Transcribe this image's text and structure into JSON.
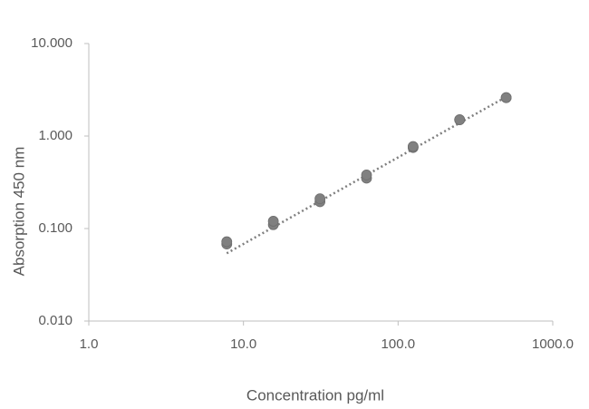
{
  "chart_data": {
    "type": "scatter",
    "xlabel": "Concentration pg/ml",
    "ylabel": "Absorption 450 nm",
    "log_x": true,
    "log_y": true,
    "grid": false,
    "xlim": [
      1,
      1000
    ],
    "ylim": [
      0.01,
      10
    ],
    "xticks": [
      {
        "value": 1,
        "label": "1.0"
      },
      {
        "value": 10,
        "label": "10.0"
      },
      {
        "value": 100,
        "label": "100.0"
      },
      {
        "value": 1000,
        "label": "1000.0"
      }
    ],
    "yticks": [
      {
        "value": 0.01,
        "label": "0.010"
      },
      {
        "value": 0.1,
        "label": "0.100"
      },
      {
        "value": 1,
        "label": "1.000"
      },
      {
        "value": 10,
        "label": "10.000"
      }
    ],
    "series": [
      {
        "color": "#808080",
        "x": [
          7.8,
          7.8,
          15.6,
          15.6,
          31.25,
          31.25,
          62.5,
          62.5,
          125,
          125,
          250,
          250,
          500,
          500
        ],
        "values": [
          0.068,
          0.072,
          0.11,
          0.12,
          0.195,
          0.21,
          0.35,
          0.38,
          0.75,
          0.77,
          1.5,
          1.5,
          2.6,
          2.6
        ]
      }
    ],
    "trendline": {
      "color": "#7f7f7f",
      "x": [
        7.8,
        500
      ],
      "values": [
        0.054,
        2.65
      ]
    }
  }
}
